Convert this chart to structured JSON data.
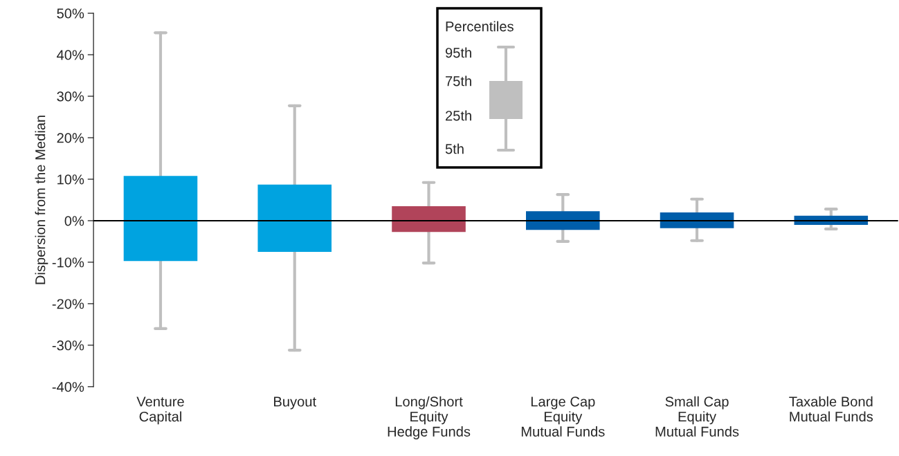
{
  "chart_data": {
    "type": "box",
    "ylabel": "Dispersion from the Median",
    "categories": [
      "Venture\nCapital",
      "Buyout",
      "Long/Short\nEquity\nHedge Funds",
      "Large Cap\nEquity\nMutual Funds",
      "Small Cap\nEquity\nMutual Funds",
      "Taxable Bond\nMutual Funds"
    ],
    "boxes": [
      {
        "low": -26,
        "q1": -9.7,
        "median": 0,
        "q3": 10.8,
        "high": 45.3
      },
      {
        "low": -31.2,
        "q1": -7.5,
        "median": 0,
        "q3": 8.7,
        "high": 27.7
      },
      {
        "low": -10.2,
        "q1": -2.7,
        "median": 0,
        "q3": 3.5,
        "high": 9.2
      },
      {
        "low": -5,
        "q1": -2.2,
        "median": 0,
        "q3": 2.3,
        "high": 6.3
      },
      {
        "low": -4.8,
        "q1": -1.8,
        "median": 0,
        "q3": 2,
        "high": 5.2
      },
      {
        "low": -2,
        "q1": -1,
        "median": 0,
        "q3": 1.2,
        "high": 2.8
      }
    ],
    "colors": [
      "#00a3e0",
      "#00a3e0",
      "#b1445a",
      "#005eaa",
      "#005eaa",
      "#005eaa"
    ],
    "ylim": [
      -40,
      50
    ],
    "yticks": [
      {
        "value": -40,
        "label": "-40%"
      },
      {
        "value": -30,
        "label": "-30%"
      },
      {
        "value": -20,
        "label": "-20%"
      },
      {
        "value": -10,
        "label": "-10%"
      },
      {
        "value": 0,
        "label": "0%"
      },
      {
        "value": 10,
        "label": "10%"
      },
      {
        "value": 20,
        "label": "20%"
      },
      {
        "value": 30,
        "label": "30%"
      },
      {
        "value": 40,
        "label": "40%"
      },
      {
        "value": 50,
        "label": "50%"
      }
    ],
    "ref_lines": [
      {
        "axis": "y",
        "value": 0,
        "label": null,
        "color": "#000000"
      }
    ],
    "annotations": [
      "Percentiles",
      "95th",
      "75th",
      "25th",
      "5th"
    ],
    "grid": false,
    "legend": false
  }
}
